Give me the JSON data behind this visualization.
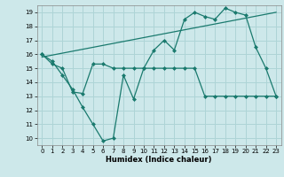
{
  "title": "",
  "xlabel": "Humidex (Indice chaleur)",
  "background_color": "#cde8ea",
  "grid_color": "#aed4d6",
  "line_color": "#1a7a6e",
  "xlim": [
    -0.5,
    23.5
  ],
  "ylim": [
    9.5,
    19.5
  ],
  "yticks": [
    10,
    11,
    12,
    13,
    14,
    15,
    16,
    17,
    18,
    19
  ],
  "xticks": [
    0,
    1,
    2,
    3,
    4,
    5,
    6,
    7,
    8,
    9,
    10,
    11,
    12,
    13,
    14,
    15,
    16,
    17,
    18,
    19,
    20,
    21,
    22,
    23
  ],
  "series": [
    {
      "x": [
        0,
        1,
        2,
        3,
        4,
        5,
        6,
        7,
        8,
        9,
        10,
        11,
        12,
        13,
        14,
        15,
        16,
        17,
        18,
        19,
        20,
        21,
        22,
        23
      ],
      "y": [
        16.0,
        15.5,
        14.5,
        13.5,
        12.2,
        11.0,
        9.8,
        10.0,
        14.5,
        12.8,
        15.0,
        16.3,
        17.0,
        16.3,
        18.5,
        19.0,
        18.7,
        18.5,
        19.3,
        19.0,
        18.8,
        16.5,
        15.0,
        13.0
      ]
    },
    {
      "x": [
        0,
        1,
        2,
        3,
        4,
        5,
        6,
        7,
        8,
        9,
        10,
        11,
        12,
        13,
        14,
        15,
        16,
        17,
        18,
        19,
        20,
        21,
        22,
        23
      ],
      "y": [
        16.0,
        15.3,
        15.0,
        13.3,
        13.2,
        15.3,
        15.3,
        15.0,
        15.0,
        15.0,
        15.0,
        15.0,
        15.0,
        15.0,
        15.0,
        15.0,
        13.0,
        13.0,
        13.0,
        13.0,
        13.0,
        13.0,
        13.0,
        13.0
      ]
    },
    {
      "x": [
        0,
        23
      ],
      "y": [
        15.8,
        19.0
      ]
    }
  ]
}
